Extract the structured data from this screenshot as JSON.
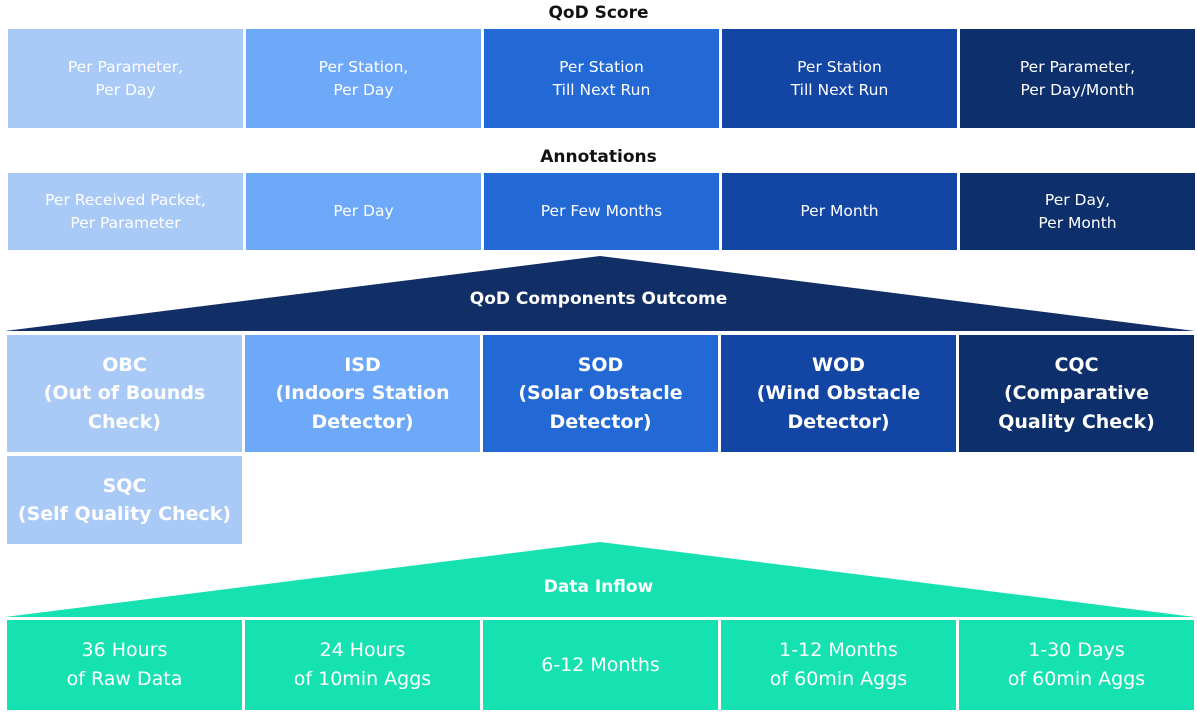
{
  "colors": {
    "level1": "#a9c9f7",
    "level2": "#6ea8f9",
    "level3": "#2369d6",
    "level4": "#1245a4",
    "level5": "#0d2f6b",
    "components_triangle": "#112e66",
    "data_inflow": "#15e2b0"
  },
  "qod_score": {
    "title": "QoD Score",
    "cells": [
      "Per Parameter,\nPer Day",
      "Per Station,\nPer Day",
      "Per Station\nTill Next Run",
      "Per Station\nTill Next Run",
      "Per Parameter,\nPer Day/Month"
    ]
  },
  "annotations": {
    "title": "Annotations",
    "cells": [
      "Per Received Packet,\nPer Parameter",
      "Per Day",
      "Per Few Months",
      "Per Month",
      "Per Day,\nPer Month"
    ]
  },
  "components": {
    "title": "QoD Components Outcome",
    "cells": [
      "OBC\n(Out of Bounds\nCheck)",
      "ISD\n(Indoors Station\nDetector)",
      "SOD\n(Solar Obstacle\nDetector)",
      "WOD\n(Wind Obstacle\nDetector)",
      "CQC\n(Comparative\nQuality Check)"
    ],
    "extra": "SQC\n(Self Quality Check)"
  },
  "data_inflow": {
    "title": "Data Inflow",
    "cells": [
      "36 Hours\nof Raw Data",
      "24 Hours\nof 10min Aggs",
      "6-12 Months",
      "1-12 Months\nof 60min Aggs",
      "1-30 Days\nof 60min Aggs"
    ]
  }
}
